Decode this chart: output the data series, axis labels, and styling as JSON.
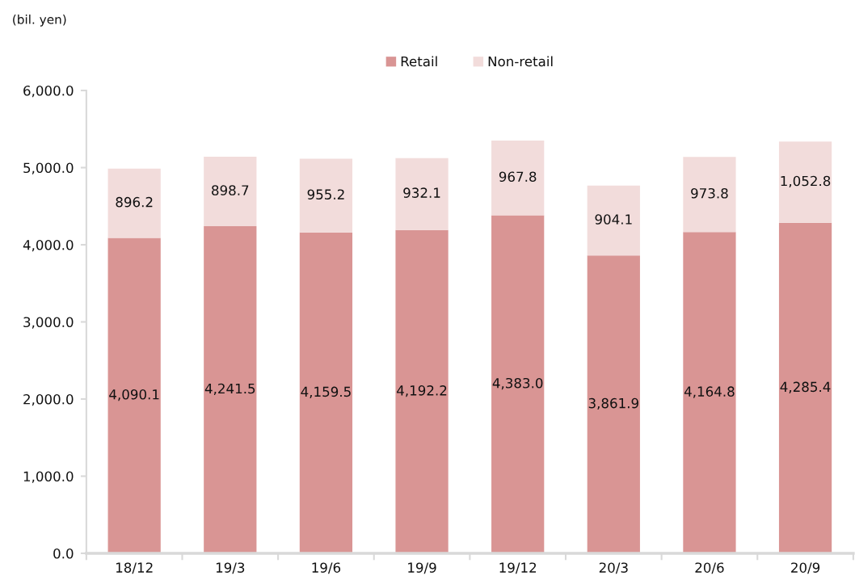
{
  "chart_data": {
    "type": "bar",
    "stacked": true,
    "ylabel": "(bil. yen)",
    "categories": [
      "18/12",
      "19/3",
      "19/6",
      "19/9",
      "19/12",
      "20/3",
      "20/6",
      "20/9"
    ],
    "series": [
      {
        "name": "Retail",
        "color": "#d99594",
        "values": [
          4090.1,
          4241.5,
          4159.5,
          4192.2,
          4383.0,
          3861.9,
          4164.8,
          4285.4
        ],
        "value_labels": [
          "4,090.1",
          "4,241.5",
          "4,159.5",
          "4,192.2",
          "4,383.0",
          "3,861.9",
          "4,164.8",
          "4,285.4"
        ]
      },
      {
        "name": "Non-retail",
        "color": "#f2dcdb",
        "values": [
          896.2,
          898.7,
          955.2,
          932.1,
          967.8,
          904.1,
          973.8,
          1052.8
        ],
        "value_labels": [
          "896.2",
          "898.7",
          "955.2",
          "932.1",
          "967.8",
          "904.1",
          "973.8",
          "1,052.8"
        ]
      }
    ],
    "ylim": [
      0,
      6000
    ],
    "yticks": [
      {
        "value": 0,
        "label": "0.0"
      },
      {
        "value": 1000,
        "label": "1,000.0"
      },
      {
        "value": 2000,
        "label": "2,000.0"
      },
      {
        "value": 3000,
        "label": "3,000.0"
      },
      {
        "value": 4000,
        "label": "4,000.0"
      },
      {
        "value": 5000,
        "label": "5,000.0"
      },
      {
        "value": 6000,
        "label": "6,000.0"
      }
    ],
    "legend": "top"
  }
}
